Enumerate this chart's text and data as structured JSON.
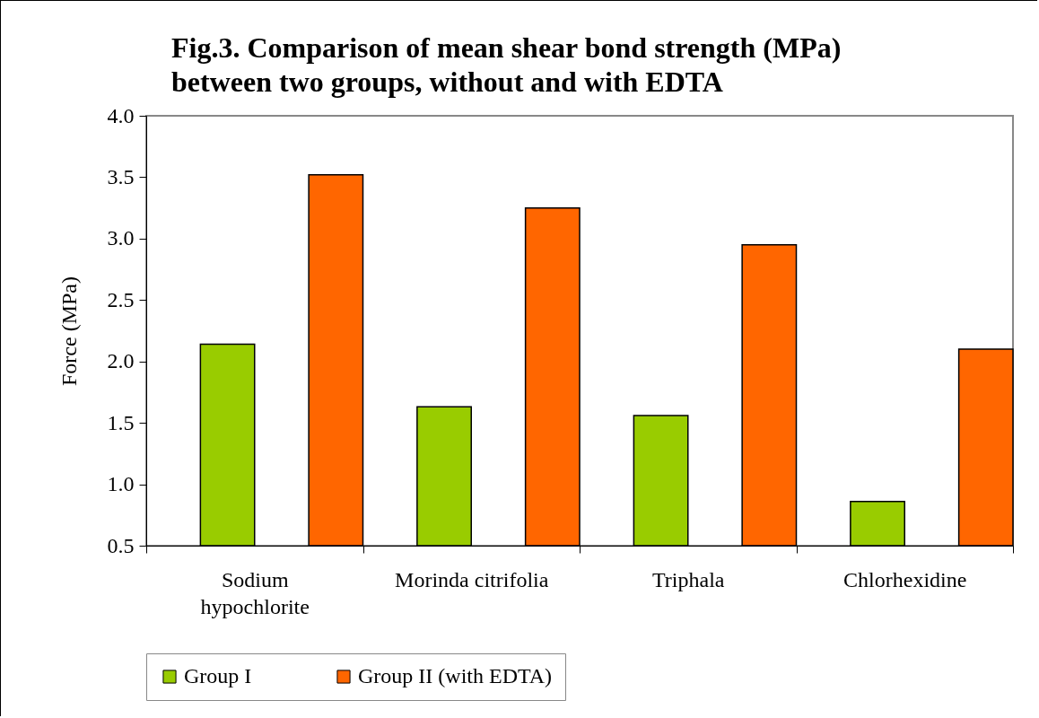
{
  "chart_data": {
    "type": "bar",
    "title": [
      "Fig.3. Comparison of mean shear bond strength (MPa)",
      "between two groups, without and with EDTA"
    ],
    "ylabel": "Force (MPa)",
    "categories": [
      "Sodium\nhypochlorite",
      "Morinda citrifolia",
      "Triphala",
      "Chlorhexidine"
    ],
    "series": [
      {
        "name": "Group I",
        "color": "#99cc00",
        "values": [
          2.14,
          1.63,
          1.56,
          0.86
        ]
      },
      {
        "name": "Group II (with EDTA)",
        "color": "#ff6600",
        "values": [
          3.52,
          3.25,
          2.95,
          2.1
        ]
      }
    ],
    "ylim": [
      0.5,
      4.0
    ],
    "yticks": [
      {
        "value": 0.5,
        "label": "0.5"
      },
      {
        "value": 1,
        "label": "1.0"
      },
      {
        "value": 1.5,
        "label": "1.5"
      },
      {
        "value": 2,
        "label": "2.0"
      },
      {
        "value": 2.5,
        "label": "2.5"
      },
      {
        "value": 3,
        "label": "3.0"
      },
      {
        "value": 3.5,
        "label": "3.5"
      },
      {
        "value": 4,
        "label": "4.0"
      }
    ],
    "grid": false,
    "legend": "bottom"
  }
}
